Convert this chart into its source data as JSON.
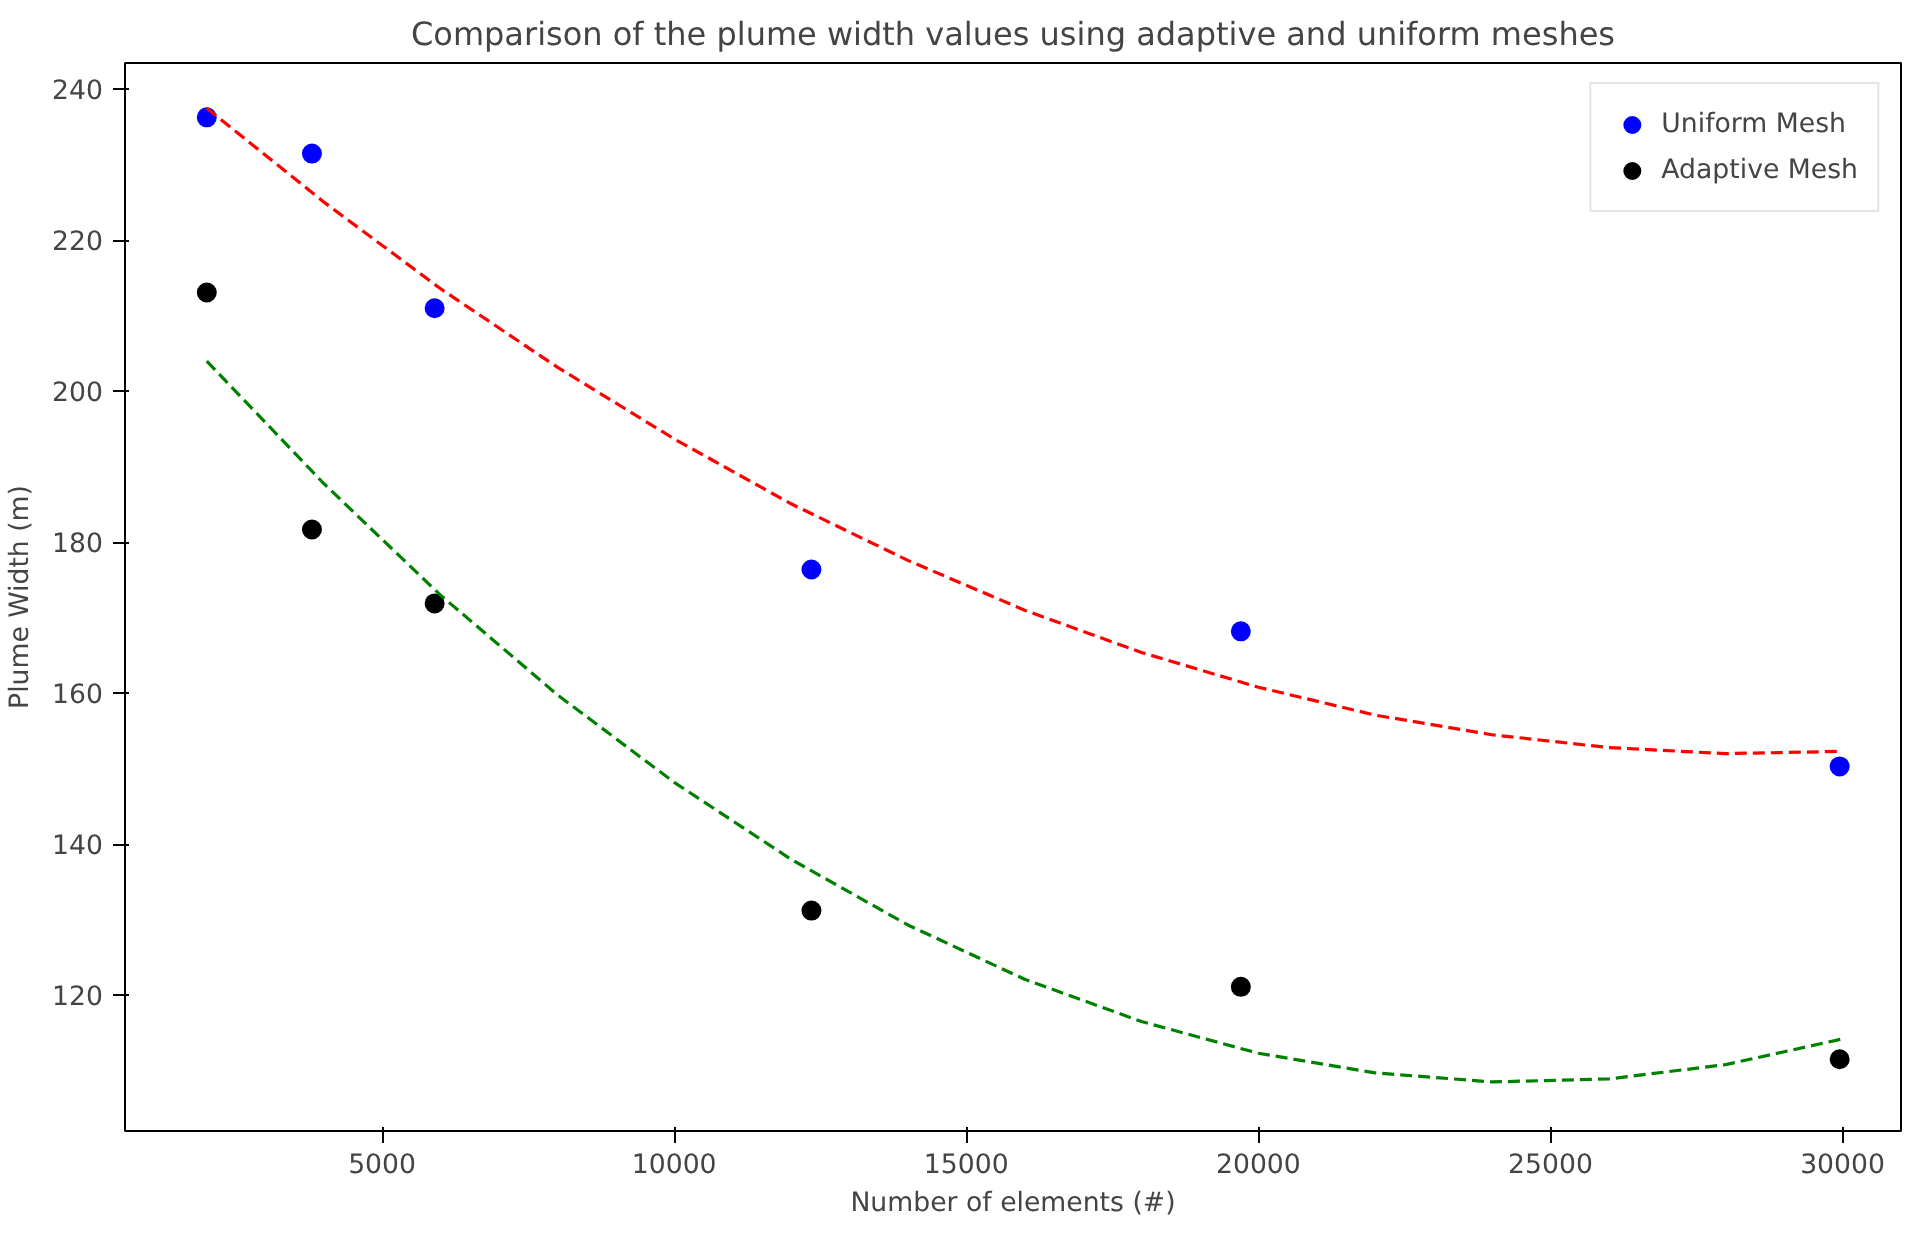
{
  "chart_data": {
    "type": "scatter",
    "title": "Comparison of the plume width values using adaptive and uniform meshes",
    "xlabel": "Number of elements (#)",
    "ylabel": "Plume Width (m)",
    "xlim": [
      600,
      31000
    ],
    "ylim": [
      102,
      243.5
    ],
    "xticks": [
      5000,
      10000,
      15000,
      20000,
      25000,
      30000
    ],
    "yticks": [
      120,
      140,
      160,
      180,
      200,
      220,
      240
    ],
    "grid": false,
    "legend": "top right",
    "series": [
      {
        "name": "Uniform Mesh",
        "marker": "circle",
        "color": "#0000ff",
        "x": [
          2000,
          3800,
          5900,
          12350,
          19700,
          29950
        ],
        "values": [
          236.3,
          231.5,
          211,
          176.4,
          168.2,
          150.3
        ]
      },
      {
        "name": "Adaptive Mesh",
        "marker": "circle",
        "color": "#000000",
        "x": [
          2000,
          3800,
          5900,
          12350,
          19700,
          29950
        ],
        "values": [
          213.1,
          181.7,
          171.9,
          131.2,
          121.1,
          111.5
        ]
      },
      {
        "type": "line",
        "marker": "none",
        "line_style": "dashed",
        "color": "#ff0000",
        "x": [
          2000,
          4000,
          6000,
          8000,
          10000,
          12000,
          14000,
          16000,
          18000,
          20000,
          22000,
          24000,
          26000,
          28000,
          30000
        ],
        "values": [
          237.5,
          225.1,
          213.6,
          203.2,
          193.7,
          185.1,
          177.6,
          171.0,
          165.4,
          160.8,
          157.1,
          154.5,
          152.8,
          152.0,
          152.3
        ]
      },
      {
        "type": "line",
        "marker": "none",
        "line_style": "dashed",
        "color": "#008000",
        "x": [
          2000,
          4000,
          6000,
          8000,
          10000,
          12000,
          14000,
          16000,
          18000,
          20000,
          22000,
          24000,
          26000,
          28000,
          30000
        ],
        "values": [
          204,
          187.8,
          173.0,
          159.8,
          148.2,
          138.0,
          129.3,
          122.1,
          116.5,
          112.3,
          109.7,
          108.5,
          108.9,
          110.8,
          114.2
        ]
      }
    ]
  }
}
